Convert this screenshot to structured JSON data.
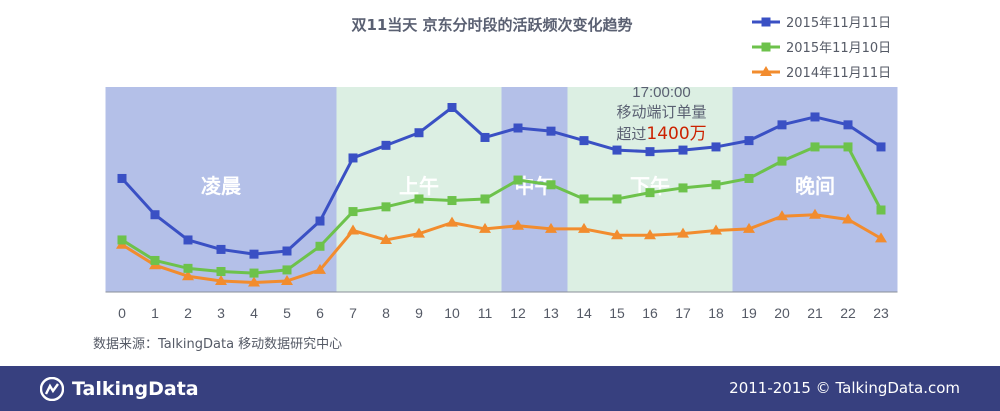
{
  "chart_data": {
    "type": "line",
    "title": "双11当天 京东分时段的活跃频次变化趋势",
    "x": [
      "0",
      "1",
      "2",
      "3",
      "4",
      "5",
      "6",
      "7",
      "8",
      "9",
      "10",
      "11",
      "12",
      "13",
      "14",
      "15",
      "16",
      "17",
      "18",
      "19",
      "20",
      "21",
      "22",
      "23"
    ],
    "series": [
      {
        "name": "2015年11月11日",
        "color": "#3a50c4",
        "marker": "square",
        "values": [
          72,
          49,
          33,
          27,
          24,
          26,
          45,
          85,
          93,
          101,
          117,
          98,
          104,
          102,
          96,
          90,
          89,
          90,
          92,
          96,
          106,
          111,
          106,
          92
        ]
      },
      {
        "name": "2015年11月10日",
        "color": "#6dc24b",
        "marker": "square",
        "values": [
          33,
          20,
          15,
          13,
          12,
          14,
          29,
          51,
          54,
          59,
          58,
          59,
          71,
          68,
          59,
          59,
          63,
          66,
          68,
          72,
          83,
          92,
          92,
          52
        ]
      },
      {
        "name": "2014年11月11日",
        "color": "#f28c2e",
        "marker": "triangle",
        "values": [
          30,
          17,
          10,
          7,
          6,
          7,
          14,
          39,
          33,
          37,
          44,
          40,
          42,
          40,
          40,
          36,
          36,
          37,
          39,
          40,
          48,
          49,
          46,
          34
        ]
      }
    ],
    "ylim": [
      0,
      130
    ],
    "grid": false,
    "legend": "top-right",
    "periods": [
      {
        "label": "凌晨",
        "from": -0.5,
        "to": 6.5,
        "color": "#b4c0e8"
      },
      {
        "label": "上午",
        "from": 6.5,
        "to": 11.5,
        "color": "#dcefe3"
      },
      {
        "label": "中午",
        "from": 11.5,
        "to": 13.5,
        "color": "#b4c0e8"
      },
      {
        "label": "下午",
        "from": 13.5,
        "to": 18.5,
        "color": "#dcefe3"
      },
      {
        "label": "晚间",
        "from": 18.5,
        "to": 23.5,
        "color": "#b4c0e8"
      }
    ],
    "annotation": {
      "line1": "17:00:00",
      "line2": "移动端订单量",
      "line3_prefix": "超过",
      "line3_highlight": "1400万",
      "x": 16.5,
      "highlight_color": "#cc2200"
    }
  },
  "source_text": "数据来源：TalkingData 移动数据研究中心",
  "footer": {
    "logo": "TalkingData",
    "copyright": "2011-2015 © TalkingData.com"
  }
}
